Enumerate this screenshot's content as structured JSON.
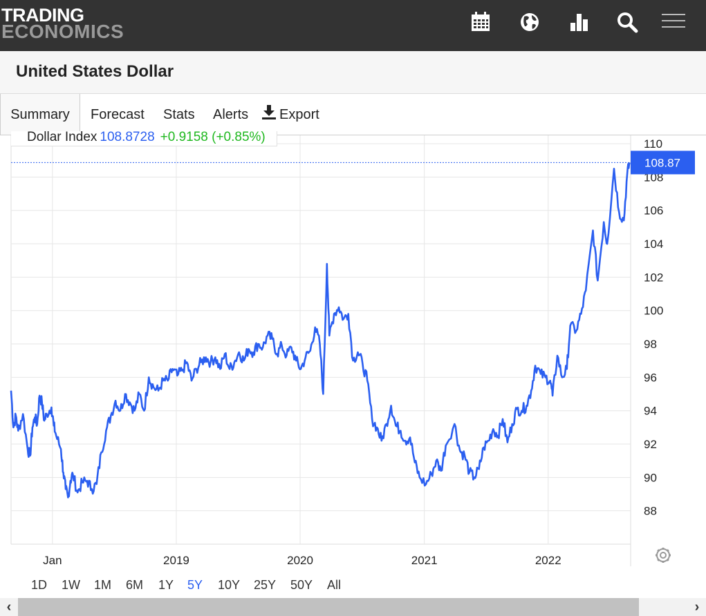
{
  "logo": {
    "line1": "TRADING",
    "line2": "ECONOMICS"
  },
  "header_icons": [
    "calendar-icon",
    "globe-icon",
    "bar-chart-icon",
    "search-icon",
    "menu-icon"
  ],
  "page": {
    "title": "United States Dollar"
  },
  "tabs": [
    {
      "label": "Summary",
      "active": true
    },
    {
      "label": "Forecast"
    },
    {
      "label": "Stats"
    },
    {
      "label": "Alerts"
    },
    {
      "label": "Export"
    }
  ],
  "legend": {
    "name": "Dollar Index",
    "value": "108.8728",
    "change": "+0.9158 (+0.85%)"
  },
  "last_value_label": "108.87",
  "ranges": [
    {
      "label": "1D"
    },
    {
      "label": "1W"
    },
    {
      "label": "1M"
    },
    {
      "label": "6M"
    },
    {
      "label": "1Y"
    },
    {
      "label": "5Y",
      "active": true
    },
    {
      "label": "10Y"
    },
    {
      "label": "25Y"
    },
    {
      "label": "50Y"
    },
    {
      "label": "All"
    }
  ],
  "colors": {
    "line": "#2b5ff0",
    "topbar": "#333333",
    "change_positive": "#1fb81f",
    "active_range": "#2b5ff0"
  },
  "chart_data": {
    "type": "line",
    "series": [
      {
        "name": "Dollar Index",
        "color": "#2b5ff0"
      }
    ],
    "ylim": [
      86,
      110.5
    ],
    "yticks": [
      88,
      90,
      92,
      94,
      96,
      98,
      100,
      102,
      104,
      106,
      108,
      110
    ],
    "xticks": [
      "Jan",
      "2019",
      "2020",
      "2021",
      "2022"
    ],
    "x_domain": [
      "2017-09-01",
      "2022-09-01"
    ],
    "xtick_dates": [
      "2018-01-01",
      "2019-01-01",
      "2020-01-01",
      "2021-01-01",
      "2022-01-01"
    ],
    "grid": true,
    "last_value": 108.87,
    "points": [
      [
        "2017-09-01",
        95.2
      ],
      [
        "2017-09-08",
        93.0
      ],
      [
        "2017-09-15",
        93.7
      ],
      [
        "2017-09-22",
        92.8
      ],
      [
        "2017-10-06",
        93.8
      ],
      [
        "2017-10-20",
        91.7
      ],
      [
        "2017-10-27",
        91.3
      ],
      [
        "2017-11-03",
        93.0
      ],
      [
        "2017-11-10",
        93.6
      ],
      [
        "2017-11-17",
        93.2
      ],
      [
        "2017-11-24",
        94.9
      ],
      [
        "2017-12-01",
        94.5
      ],
      [
        "2017-12-08",
        93.4
      ],
      [
        "2017-12-15",
        93.8
      ],
      [
        "2017-12-29",
        94.2
      ],
      [
        "2018-01-05",
        93.1
      ],
      [
        "2018-01-12",
        92.5
      ],
      [
        "2018-01-26",
        91.7
      ],
      [
        "2018-02-02",
        90.3
      ],
      [
        "2018-02-09",
        89.3
      ],
      [
        "2018-02-16",
        88.8
      ],
      [
        "2018-02-23",
        89.8
      ],
      [
        "2018-03-02",
        90.2
      ],
      [
        "2018-03-16",
        89.1
      ],
      [
        "2018-03-30",
        89.7
      ],
      [
        "2018-04-13",
        89.8
      ],
      [
        "2018-04-27",
        89.3
      ],
      [
        "2018-05-11",
        89.6
      ],
      [
        "2018-05-25",
        91.5
      ],
      [
        "2018-06-08",
        92.8
      ],
      [
        "2018-06-22",
        93.7
      ],
      [
        "2018-07-06",
        94.6
      ],
      [
        "2018-07-20",
        94.0
      ],
      [
        "2018-08-03",
        95.0
      ],
      [
        "2018-08-17",
        94.5
      ],
      [
        "2018-08-31",
        94.0
      ],
      [
        "2018-09-14",
        95.0
      ],
      [
        "2018-09-28",
        94.0
      ],
      [
        "2018-10-12",
        96.0
      ],
      [
        "2018-10-26",
        95.4
      ],
      [
        "2018-11-09",
        95.2
      ],
      [
        "2018-11-23",
        95.8
      ],
      [
        "2018-12-07",
        95.8
      ],
      [
        "2018-12-21",
        96.5
      ],
      [
        "2019-01-04",
        96.1
      ],
      [
        "2019-01-18",
        96.4
      ],
      [
        "2019-02-01",
        96.9
      ],
      [
        "2019-02-15",
        95.8
      ],
      [
        "2019-03-01",
        96.5
      ],
      [
        "2019-03-15",
        96.9
      ],
      [
        "2019-03-29",
        97.2
      ],
      [
        "2019-04-12",
        96.9
      ],
      [
        "2019-04-26",
        97.2
      ],
      [
        "2019-05-10",
        96.5
      ],
      [
        "2019-05-24",
        97.4
      ],
      [
        "2019-06-07",
        96.5
      ],
      [
        "2019-06-21",
        96.9
      ],
      [
        "2019-07-05",
        97.5
      ],
      [
        "2019-07-19",
        97.0
      ],
      [
        "2019-08-02",
        97.7
      ],
      [
        "2019-08-16",
        97.5
      ],
      [
        "2019-08-30",
        98.0
      ],
      [
        "2019-09-13",
        97.8
      ],
      [
        "2019-09-27",
        98.5
      ],
      [
        "2019-10-11",
        98.3
      ],
      [
        "2019-10-25",
        97.4
      ],
      [
        "2019-11-08",
        97.9
      ],
      [
        "2019-11-22",
        97.3
      ],
      [
        "2019-12-06",
        97.8
      ],
      [
        "2019-12-20",
        97.0
      ],
      [
        "2020-01-03",
        96.5
      ],
      [
        "2020-01-17",
        97.2
      ],
      [
        "2020-01-31",
        97.6
      ],
      [
        "2020-02-14",
        99.0
      ],
      [
        "2020-02-28",
        98.0
      ],
      [
        "2020-03-09",
        95.0
      ],
      [
        "2020-03-20",
        102.8
      ],
      [
        "2020-03-27",
        98.5
      ],
      [
        "2020-04-10",
        99.8
      ],
      [
        "2020-04-24",
        100.2
      ],
      [
        "2020-05-08",
        99.5
      ],
      [
        "2020-05-22",
        99.8
      ],
      [
        "2020-06-05",
        97.0
      ],
      [
        "2020-06-19",
        97.5
      ],
      [
        "2020-07-03",
        96.8
      ],
      [
        "2020-07-17",
        95.8
      ],
      [
        "2020-07-31",
        93.5
      ],
      [
        "2020-08-14",
        93.0
      ],
      [
        "2020-08-28",
        92.2
      ],
      [
        "2020-09-11",
        93.2
      ],
      [
        "2020-09-25",
        94.3
      ],
      [
        "2020-10-09",
        93.1
      ],
      [
        "2020-10-23",
        92.8
      ],
      [
        "2020-11-06",
        92.2
      ],
      [
        "2020-11-20",
        92.4
      ],
      [
        "2020-12-04",
        90.9
      ],
      [
        "2020-12-18",
        90.0
      ],
      [
        "2021-01-06",
        89.6
      ],
      [
        "2021-01-22",
        90.2
      ],
      [
        "2021-02-05",
        91.0
      ],
      [
        "2021-02-19",
        90.4
      ],
      [
        "2021-03-05",
        91.9
      ],
      [
        "2021-03-31",
        93.2
      ],
      [
        "2021-04-16",
        91.6
      ],
      [
        "2021-04-30",
        91.3
      ],
      [
        "2021-05-14",
        90.3
      ],
      [
        "2021-05-28",
        90.0
      ],
      [
        "2021-06-11",
        90.5
      ],
      [
        "2021-06-25",
        91.8
      ],
      [
        "2021-07-09",
        92.2
      ],
      [
        "2021-07-23",
        92.9
      ],
      [
        "2021-08-06",
        92.5
      ],
      [
        "2021-08-20",
        93.5
      ],
      [
        "2021-09-03",
        92.1
      ],
      [
        "2021-09-17",
        93.2
      ],
      [
        "2021-10-01",
        94.1
      ],
      [
        "2021-10-15",
        94.0
      ],
      [
        "2021-10-29",
        94.3
      ],
      [
        "2021-11-12",
        95.2
      ],
      [
        "2021-11-24",
        96.7
      ],
      [
        "2021-12-10",
        96.2
      ],
      [
        "2021-12-24",
        96.0
      ],
      [
        "2022-01-07",
        95.8
      ],
      [
        "2022-01-14",
        94.9
      ],
      [
        "2022-01-28",
        97.3
      ],
      [
        "2022-02-11",
        96.0
      ],
      [
        "2022-02-25",
        96.5
      ],
      [
        "2022-03-07",
        99.1
      ],
      [
        "2022-03-25",
        98.8
      ],
      [
        "2022-04-08",
        99.8
      ],
      [
        "2022-04-22",
        101.2
      ],
      [
        "2022-05-13",
        104.8
      ],
      [
        "2022-05-27",
        101.8
      ],
      [
        "2022-06-14",
        105.3
      ],
      [
        "2022-06-24",
        104.0
      ],
      [
        "2022-07-14",
        108.5
      ],
      [
        "2022-07-29",
        105.9
      ],
      [
        "2022-08-12",
        105.4
      ],
      [
        "2022-08-22",
        108.2
      ],
      [
        "2022-08-29",
        108.87
      ]
    ]
  }
}
